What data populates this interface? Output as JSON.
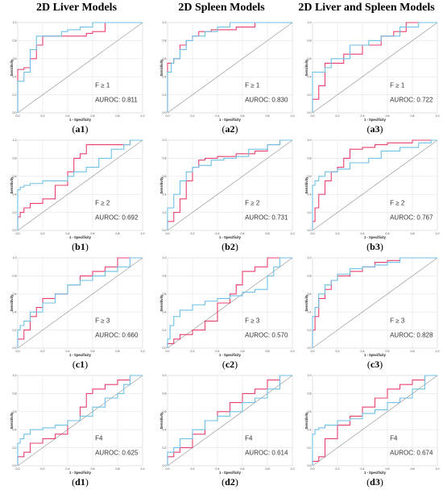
{
  "columns": [
    {
      "title": "2D Liver Models"
    },
    {
      "title": "2D Spleen Models"
    },
    {
      "title": "2D Liver and Spleen Models"
    }
  ],
  "axes": {
    "xlabel": "1 - Specificity",
    "ylabel": "Sensitivity",
    "ticks": [
      "0.0",
      "0.2",
      "0.4",
      "0.6",
      "0.8",
      "1.0"
    ],
    "xlim": [
      0,
      1
    ],
    "ylim": [
      0,
      1
    ]
  },
  "colors": {
    "pink": "#e8406e",
    "blue": "#6ec1e4",
    "diagonal": "#9a9a9a",
    "grid": "#e4e4e4"
  },
  "chart_data": [
    {
      "type": "line",
      "id": "a1",
      "caption_letter": "a",
      "caption_num": "1",
      "label": "F ≥ 1",
      "auroc": "AUROC: 0.811",
      "series": [
        {
          "x": [
            0,
            0,
            0.05,
            0.1,
            0.15,
            0.2,
            0.2,
            0.3,
            0.45,
            0.55,
            0.6,
            0.7,
            0.8,
            1
          ],
          "y": [
            0,
            0.45,
            0.48,
            0.5,
            0.6,
            0.75,
            0.85,
            0.85,
            0.85,
            0.85,
            0.88,
            0.9,
            1,
            1
          ]
        },
        {
          "x": [
            0,
            0,
            0.05,
            0.1,
            0.15,
            0.2,
            0.35,
            0.4,
            0.5,
            0.55,
            0.6,
            0.6,
            1
          ],
          "y": [
            0,
            0.15,
            0.35,
            0.45,
            0.7,
            0.85,
            0.85,
            0.9,
            0.92,
            0.95,
            0.95,
            1,
            1
          ]
        }
      ]
    },
    {
      "type": "line",
      "id": "a2",
      "caption_letter": "a",
      "caption_num": "2",
      "label": "F ≥ 1",
      "auroc": "AUROC: 0.830",
      "series": [
        {
          "x": [
            0,
            0,
            0.05,
            0.1,
            0.15,
            0.2,
            0.25,
            0.35,
            0.55,
            0.7,
            1
          ],
          "y": [
            0,
            0.5,
            0.55,
            0.6,
            0.75,
            0.8,
            0.85,
            0.9,
            0.92,
            0.95,
            1
          ]
        },
        {
          "x": [
            0,
            0.03,
            0.05,
            0.1,
            0.15,
            0.2,
            0.3,
            0.4,
            0.5,
            0.6,
            1
          ],
          "y": [
            0,
            0.45,
            0.55,
            0.6,
            0.7,
            0.8,
            0.85,
            0.9,
            0.95,
            1,
            1
          ]
        }
      ]
    },
    {
      "type": "line",
      "id": "a3",
      "caption_letter": "a",
      "caption_num": "3",
      "label": "F ≥ 1",
      "auroc": "AUROC: 0.722",
      "series": [
        {
          "x": [
            0,
            0.05,
            0.1,
            0.15,
            0.25,
            0.4,
            0.4,
            0.55,
            0.65,
            0.75,
            0.8,
            1
          ],
          "y": [
            0,
            0.15,
            0.3,
            0.55,
            0.55,
            0.65,
            0.75,
            0.75,
            0.85,
            0.9,
            1,
            1
          ]
        },
        {
          "x": [
            0,
            0,
            0.1,
            0.15,
            0.3,
            0.45,
            0.55,
            0.7,
            0.85,
            1
          ],
          "y": [
            0,
            0.35,
            0.45,
            0.5,
            0.6,
            0.75,
            0.8,
            0.85,
            0.95,
            1
          ]
        }
      ]
    },
    {
      "type": "line",
      "id": "b1",
      "caption_letter": "b",
      "caption_num": "1",
      "label": "F ≥ 2",
      "auroc": "AUROC: 0.692",
      "series": [
        {
          "x": [
            0,
            0.02,
            0.05,
            0.1,
            0.2,
            0.3,
            0.4,
            0.45,
            0.5,
            0.55,
            0.6,
            0.7,
            0.8,
            0.9,
            1
          ],
          "y": [
            0,
            0.15,
            0.2,
            0.25,
            0.3,
            0.35,
            0.5,
            0.65,
            0.8,
            0.85,
            0.95,
            0.95,
            0.95,
            0.95,
            1
          ]
        },
        {
          "x": [
            0,
            0.02,
            0.05,
            0.1,
            0.2,
            0.3,
            0.4,
            0.45,
            0.55,
            0.65,
            0.75,
            0.85,
            0.9,
            1
          ],
          "y": [
            0,
            0.45,
            0.48,
            0.5,
            0.52,
            0.55,
            0.55,
            0.6,
            0.65,
            0.7,
            0.8,
            0.9,
            0.95,
            1
          ]
        }
      ]
    },
    {
      "type": "line",
      "id": "b2",
      "caption_letter": "b",
      "caption_num": "2",
      "label": "F ≥ 2",
      "auroc": "AUROC: 0.731",
      "series": [
        {
          "x": [
            0,
            0.05,
            0.1,
            0.15,
            0.2,
            0.25,
            0.3,
            0.4,
            0.55,
            0.7,
            0.8,
            0.9,
            1
          ],
          "y": [
            0,
            0.1,
            0.2,
            0.35,
            0.55,
            0.7,
            0.78,
            0.8,
            0.82,
            0.85,
            0.88,
            0.95,
            1
          ]
        },
        {
          "x": [
            0,
            0.05,
            0.1,
            0.15,
            0.2,
            0.25,
            0.35,
            0.45,
            0.55,
            0.65,
            0.8,
            0.9,
            1
          ],
          "y": [
            0,
            0.25,
            0.4,
            0.55,
            0.65,
            0.7,
            0.72,
            0.78,
            0.8,
            0.82,
            0.9,
            0.95,
            1
          ]
        }
      ]
    },
    {
      "type": "line",
      "id": "b3",
      "caption_letter": "b",
      "caption_num": "3",
      "label": "F ≥ 2",
      "auroc": "AUROC: 0.767",
      "series": [
        {
          "x": [
            0,
            0.02,
            0.05,
            0.1,
            0.15,
            0.2,
            0.25,
            0.3,
            0.4,
            0.5,
            0.6,
            0.8,
            1
          ],
          "y": [
            0,
            0.1,
            0.25,
            0.4,
            0.55,
            0.65,
            0.7,
            0.8,
            0.9,
            0.92,
            0.95,
            0.97,
            1
          ]
        },
        {
          "x": [
            0,
            0.02,
            0.05,
            0.1,
            0.2,
            0.3,
            0.45,
            0.55,
            0.7,
            0.85,
            0.95,
            1
          ],
          "y": [
            0,
            0.5,
            0.55,
            0.6,
            0.65,
            0.68,
            0.75,
            0.8,
            0.88,
            0.92,
            0.97,
            1
          ]
        }
      ]
    },
    {
      "type": "line",
      "id": "c1",
      "caption_letter": "c",
      "caption_num": "1",
      "label": "F ≥ 3",
      "auroc": "AUROC: 0.660",
      "series": [
        {
          "x": [
            0,
            0.05,
            0.1,
            0.15,
            0.2,
            0.3,
            0.4,
            0.5,
            0.6,
            0.7,
            0.8,
            0.9,
            1
          ],
          "y": [
            0,
            0.1,
            0.2,
            0.35,
            0.45,
            0.55,
            0.6,
            0.7,
            0.8,
            0.85,
            0.9,
            1,
            1
          ]
        },
        {
          "x": [
            0,
            0.02,
            0.05,
            0.1,
            0.2,
            0.3,
            0.4,
            0.5,
            0.6,
            0.7,
            0.8,
            0.9,
            1
          ],
          "y": [
            0,
            0.2,
            0.25,
            0.3,
            0.4,
            0.5,
            0.6,
            0.7,
            0.75,
            0.8,
            0.85,
            0.9,
            1
          ]
        }
      ]
    },
    {
      "type": "line",
      "id": "c2",
      "caption_letter": "c",
      "caption_num": "2",
      "label": "F ≥ 3",
      "auroc": "AUROC: 0.570",
      "series": [
        {
          "x": [
            0,
            0.05,
            0.1,
            0.2,
            0.3,
            0.4,
            0.5,
            0.55,
            0.6,
            0.7,
            0.8,
            0.9,
            1
          ],
          "y": [
            0,
            0.05,
            0.1,
            0.15,
            0.2,
            0.3,
            0.5,
            0.6,
            0.7,
            0.85,
            0.9,
            1,
            1
          ]
        },
        {
          "x": [
            0,
            0.02,
            0.05,
            0.1,
            0.2,
            0.3,
            0.4,
            0.5,
            0.6,
            0.7,
            0.8,
            0.85,
            0.9,
            1
          ],
          "y": [
            0,
            0.1,
            0.25,
            0.35,
            0.42,
            0.48,
            0.52,
            0.55,
            0.58,
            0.62,
            0.65,
            0.8,
            0.9,
            1
          ]
        }
      ]
    },
    {
      "type": "line",
      "id": "c3",
      "caption_letter": "c",
      "caption_num": "3",
      "label": "F ≥ 3",
      "auroc": "AUROC: 0.828",
      "series": [
        {
          "x": [
            0,
            0.02,
            0.05,
            0.1,
            0.15,
            0.2,
            0.3,
            0.4,
            0.5,
            0.6,
            0.7,
            0.8,
            1
          ],
          "y": [
            0,
            0.2,
            0.35,
            0.55,
            0.65,
            0.75,
            0.8,
            0.85,
            0.9,
            0.95,
            0.97,
            1,
            1
          ]
        },
        {
          "x": [
            0,
            0.02,
            0.05,
            0.1,
            0.15,
            0.2,
            0.3,
            0.4,
            0.5,
            0.6,
            0.7,
            0.8,
            1
          ],
          "y": [
            0,
            0.35,
            0.45,
            0.6,
            0.7,
            0.75,
            0.82,
            0.88,
            0.9,
            0.92,
            0.95,
            1,
            1
          ]
        }
      ]
    },
    {
      "type": "line",
      "id": "d1",
      "caption_letter": "d",
      "caption_num": "1",
      "label": "F4",
      "auroc": "AUROC: 0.625",
      "series": [
        {
          "x": [
            0,
            0.05,
            0.1,
            0.2,
            0.3,
            0.4,
            0.5,
            0.55,
            0.6,
            0.7,
            0.8,
            0.9,
            1
          ],
          "y": [
            0,
            0.1,
            0.15,
            0.25,
            0.3,
            0.35,
            0.5,
            0.65,
            0.8,
            0.85,
            0.9,
            0.95,
            1
          ]
        },
        {
          "x": [
            0,
            0.02,
            0.05,
            0.1,
            0.2,
            0.3,
            0.4,
            0.5,
            0.6,
            0.7,
            0.8,
            0.85,
            0.9,
            1
          ],
          "y": [
            0,
            0.25,
            0.3,
            0.35,
            0.4,
            0.42,
            0.45,
            0.5,
            0.55,
            0.65,
            0.75,
            0.8,
            0.9,
            1
          ]
        }
      ]
    },
    {
      "type": "line",
      "id": "d2",
      "caption_letter": "d",
      "caption_num": "2",
      "label": "F4",
      "auroc": "AUROC: 0.614",
      "series": [
        {
          "x": [
            0,
            0.05,
            0.1,
            0.2,
            0.3,
            0.4,
            0.5,
            0.6,
            0.7,
            0.8,
            0.9,
            1
          ],
          "y": [
            0,
            0.1,
            0.15,
            0.2,
            0.35,
            0.5,
            0.6,
            0.7,
            0.8,
            0.85,
            0.95,
            1
          ]
        },
        {
          "x": [
            0,
            0.05,
            0.1,
            0.2,
            0.3,
            0.4,
            0.5,
            0.6,
            0.7,
            0.8,
            0.9,
            1
          ],
          "y": [
            0,
            0.15,
            0.2,
            0.3,
            0.4,
            0.5,
            0.55,
            0.6,
            0.7,
            0.75,
            0.85,
            1
          ]
        }
      ]
    },
    {
      "type": "line",
      "id": "d3",
      "caption_letter": "d",
      "caption_num": "3",
      "label": "F4",
      "auroc": "AUROC: 0.674",
      "series": [
        {
          "x": [
            0,
            0.05,
            0.1,
            0.2,
            0.3,
            0.4,
            0.5,
            0.6,
            0.7,
            0.8,
            0.9,
            1
          ],
          "y": [
            0,
            0.05,
            0.1,
            0.3,
            0.45,
            0.55,
            0.65,
            0.75,
            0.85,
            0.9,
            0.95,
            1
          ]
        },
        {
          "x": [
            0,
            0.02,
            0.05,
            0.1,
            0.2,
            0.3,
            0.4,
            0.5,
            0.6,
            0.7,
            0.8,
            0.9,
            1
          ],
          "y": [
            0,
            0.35,
            0.4,
            0.42,
            0.45,
            0.5,
            0.52,
            0.58,
            0.62,
            0.7,
            0.75,
            0.85,
            1
          ]
        }
      ]
    }
  ]
}
